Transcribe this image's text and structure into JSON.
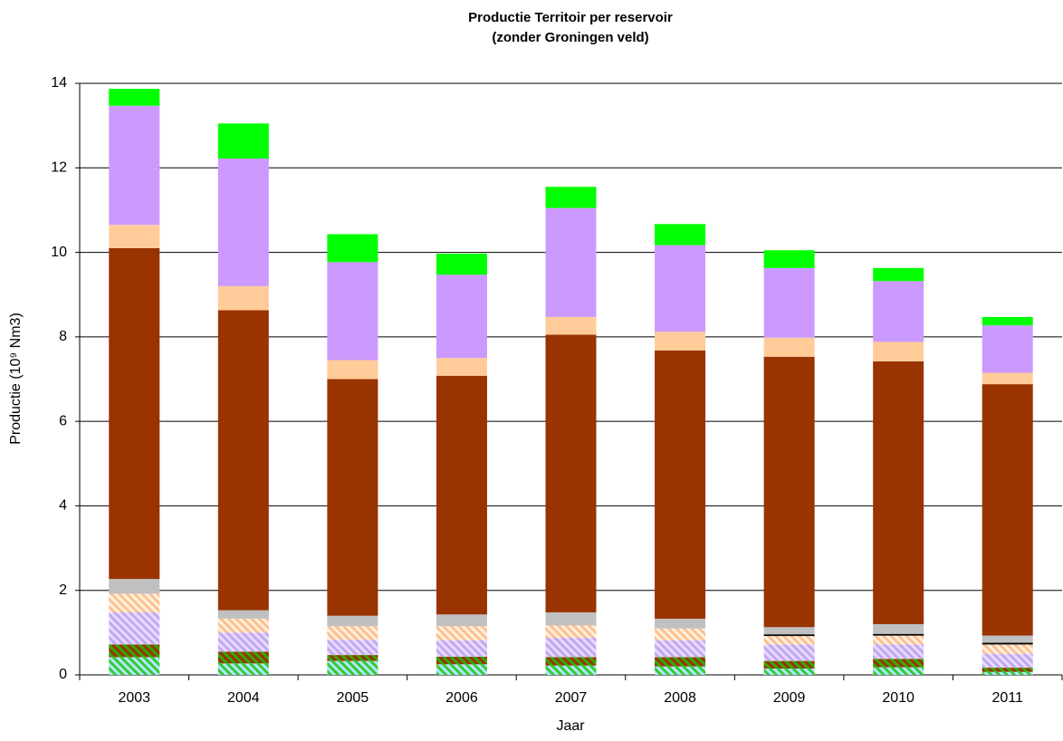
{
  "chart_data": {
    "type": "stacked_bar",
    "title": [
      "Productie Territoir per reservoir",
      "(zonder Groningen veld)"
    ],
    "y_label": "Productie (10⁹ Nm3)",
    "x_label": "Jaar",
    "categories": [
      "2003",
      "2004",
      "2005",
      "2006",
      "2007",
      "2008",
      "2009",
      "2010",
      "2011"
    ],
    "series": [
      {
        "color": "#b3e6ff",
        "hatch": "#33cc33",
        "values": [
          0.42,
          0.27,
          0.33,
          0.25,
          0.22,
          0.2,
          0.15,
          0.18,
          0.07
        ]
      },
      {
        "color": "#993300",
        "hatch": "#33aa00",
        "values": [
          0.3,
          0.28,
          0.14,
          0.18,
          0.2,
          0.22,
          0.18,
          0.2,
          0.1
        ]
      },
      {
        "color": "#e6dcff",
        "hatch": "#c4a6f2",
        "values": [
          0.76,
          0.45,
          0.36,
          0.39,
          0.46,
          0.4,
          0.39,
          0.34,
          0.33
        ]
      },
      {
        "color": "#fff0e0",
        "hatch": "#ffbf8c",
        "values": [
          0.44,
          0.33,
          0.32,
          0.33,
          0.29,
          0.28,
          0.2,
          0.21,
          0.22
        ]
      },
      {
        "color": "#000000",
        "values": [
          0,
          0,
          0,
          0,
          0,
          0,
          0.04,
          0.04,
          0.04
        ]
      },
      {
        "color": "#c0c0c0",
        "values": [
          0.35,
          0.2,
          0.25,
          0.28,
          0.31,
          0.23,
          0.17,
          0.23,
          0.17
        ]
      },
      {
        "color": "#993300",
        "values": [
          7.83,
          7.1,
          5.6,
          5.65,
          6.57,
          6.35,
          6.4,
          6.22,
          5.95
        ]
      },
      {
        "color": "#ffcc99",
        "values": [
          0.55,
          0.57,
          0.45,
          0.42,
          0.42,
          0.44,
          0.45,
          0.46,
          0.27
        ]
      },
      {
        "color": "#cc99ff",
        "values": [
          2.82,
          3.02,
          2.32,
          1.97,
          2.58,
          2.05,
          1.65,
          1.44,
          1.12
        ]
      },
      {
        "color": "#00ff00",
        "values": [
          0.4,
          0.83,
          0.66,
          0.5,
          0.5,
          0.5,
          0.42,
          0.31,
          0.2
        ]
      }
    ],
    "ylim": [
      0,
      14
    ],
    "yticks": [
      0,
      2,
      4,
      6,
      8,
      10,
      12,
      14
    ],
    "grid": true
  }
}
